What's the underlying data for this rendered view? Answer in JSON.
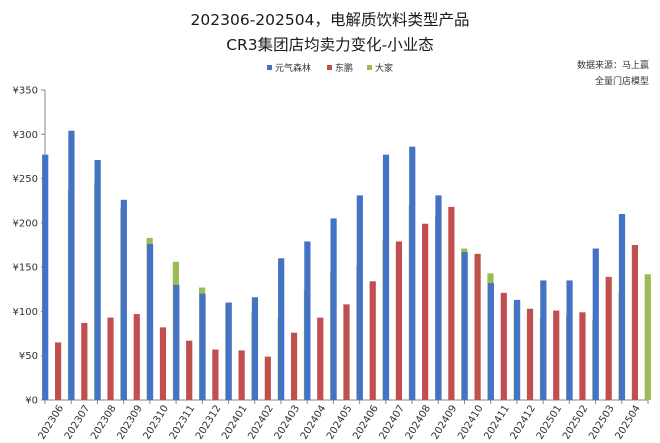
{
  "chart_data": {
    "type": "bar",
    "title": "202306-202504，电解质饮料类型产品",
    "subtitle": "CR3集团店均卖力变化-小业态",
    "source_line1": "数据来源：马上赢",
    "source_line2": "全量门店模型",
    "legend_position": "top-right",
    "grid": false,
    "ylim": [
      0,
      350
    ],
    "yticks": [
      0,
      50,
      100,
      150,
      200,
      250,
      300,
      350
    ],
    "ytick_labels": [
      "¥0",
      "¥50",
      "¥100",
      "¥150",
      "¥200",
      "¥250",
      "¥300",
      "¥350"
    ],
    "categories": [
      "202306",
      "202307",
      "202308",
      "202309",
      "202310",
      "202311",
      "202312",
      "202401",
      "202402",
      "202403",
      "202404",
      "202405",
      "202406",
      "202407",
      "202408",
      "202409",
      "202410",
      "202411",
      "202412",
      "202501",
      "202502",
      "202503",
      "202504"
    ],
    "series": [
      {
        "name": "元气森林",
        "color": "#4472c4",
        "values": [
          277,
          304,
          271,
          226,
          176,
          130,
          120,
          110,
          116,
          160,
          179,
          205,
          231,
          277,
          286,
          231,
          167,
          132,
          113,
          135,
          135,
          171,
          210
        ]
      },
      {
        "name": "东鹏",
        "color": "#c0504d",
        "values": [
          65,
          87,
          93,
          97,
          82,
          67,
          57,
          56,
          49,
          76,
          93,
          108,
          134,
          179,
          199,
          218,
          165,
          121,
          103,
          101,
          99,
          139,
          175
        ]
      },
      {
        "name": "大家",
        "color": "#9bbb59",
        "values": [
          238,
          245,
          217,
          183,
          156,
          127,
          109,
          100,
          93,
          124,
          145,
          151,
          181,
          220,
          207,
          171,
          143,
          109,
          93,
          95,
          91,
          121,
          142
        ]
      }
    ]
  }
}
